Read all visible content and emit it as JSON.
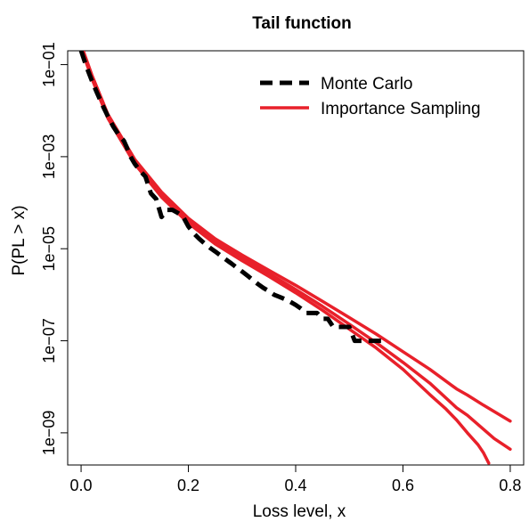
{
  "chart_data": {
    "type": "line",
    "title": "Tail function",
    "xlabel": "Loss level, x",
    "ylabel": "P(PL > x)",
    "xlim": [
      -0.025,
      0.825
    ],
    "ylim": [
      2e-10,
      0.2
    ],
    "y_scale": "log",
    "grid": false,
    "legend_position": "top-right",
    "x_ticks": [
      {
        "value": 0.0,
        "label": "0.0"
      },
      {
        "value": 0.2,
        "label": "0.2"
      },
      {
        "value": 0.4,
        "label": "0.4"
      },
      {
        "value": 0.6,
        "label": "0.6"
      },
      {
        "value": 0.8,
        "label": "0.8"
      }
    ],
    "y_ticks": [
      {
        "value": 0.1,
        "label": "1e−01"
      },
      {
        "value": 0.001,
        "label": "1e−03"
      },
      {
        "value": 1e-05,
        "label": "1e−05"
      },
      {
        "value": 1e-07,
        "label": "1e−07"
      },
      {
        "value": 1e-09,
        "label": "1e−09"
      }
    ],
    "series": [
      {
        "name": "Monte Carlo",
        "color": "#000000",
        "style": "dashed",
        "x": [
          0.0,
          0.01,
          0.02,
          0.03,
          0.04,
          0.05,
          0.06,
          0.07,
          0.08,
          0.085,
          0.09,
          0.1,
          0.11,
          0.12,
          0.13,
          0.14,
          0.15,
          0.16,
          0.17,
          0.18,
          0.19,
          0.2,
          0.21,
          0.22,
          0.23,
          0.24,
          0.25,
          0.26,
          0.27,
          0.28,
          0.29,
          0.3,
          0.31,
          0.32,
          0.33,
          0.34,
          0.35,
          0.36,
          0.37,
          0.38,
          0.39,
          0.4,
          0.41,
          0.42,
          0.43,
          0.44,
          0.45,
          0.46,
          0.47,
          0.48,
          0.49,
          0.5,
          0.51,
          0.52,
          0.53,
          0.54,
          0.55,
          0.56,
          0.57
        ],
        "y": [
          0.2,
          0.09,
          0.045,
          0.024,
          0.013,
          0.0075,
          0.0045,
          0.003,
          0.0022,
          0.0016,
          0.0011,
          0.0007,
          0.00049,
          0.00037,
          0.00016,
          0.00012,
          4.9e-05,
          7e-05,
          7e-05,
          6e-05,
          5e-05,
          3.05e-05,
          2.15e-05,
          1.65e-05,
          1.3e-05,
          1.05e-05,
          8.7e-06,
          7.1e-06,
          5.8e-06,
          4.8e-06,
          3.9e-06,
          3.2e-06,
          2.6e-06,
          2.1e-06,
          1.7e-06,
          1.4e-06,
          1.2e-06,
          1e-06,
          9e-07,
          8e-07,
          7e-07,
          6e-07,
          5e-07,
          4e-07,
          4e-07,
          4e-07,
          3e-07,
          3e-07,
          2e-07,
          2e-07,
          2e-07,
          2e-07,
          1e-07,
          1e-07,
          1e-07,
          1e-07,
          1e-07,
          1e-07,
          1e-07
        ]
      },
      {
        "name": "Importance Sampling",
        "color": "#e8202a",
        "style": "solid",
        "x": [
          0.0,
          0.02,
          0.05,
          0.1,
          0.15,
          0.2,
          0.25,
          0.3,
          0.35,
          0.4,
          0.45,
          0.5,
          0.55,
          0.6,
          0.65,
          0.7,
          0.72,
          0.75,
          0.77,
          0.8
        ],
        "y": [
          0.25,
          0.055,
          0.0075,
          0.00078,
          0.00015,
          4.1e-05,
          1.45e-05,
          6.3e-06,
          2.9e-06,
          1.3e-06,
          5.6e-07,
          2.3e-07,
          9.1e-08,
          3.4e-08,
          1.2e-08,
          3.5e-09,
          2.4e-09,
          1.2e-09,
          7.5e-10,
          4.4e-10
        ]
      },
      {
        "name": "",
        "color": "#e8202a",
        "style": "solid",
        "x": [
          0.0,
          0.02,
          0.05,
          0.1,
          0.15,
          0.2,
          0.25,
          0.3,
          0.35,
          0.4,
          0.45,
          0.5,
          0.55,
          0.6,
          0.65,
          0.7,
          0.72,
          0.75,
          0.77,
          0.8
        ],
        "y": [
          0.27,
          0.06,
          0.0083,
          0.00088,
          0.00017,
          4.6e-05,
          1.65e-05,
          7.3e-06,
          3.4e-06,
          1.6e-06,
          7.2e-07,
          3.2e-07,
          1.4e-07,
          5.8e-08,
          2.4e-08,
          9e-09,
          6.6e-09,
          4e-09,
          2.9e-09,
          1.8e-09
        ]
      },
      {
        "name": "",
        "color": "#e8202a",
        "style": "solid",
        "x": [
          0.0,
          0.02,
          0.05,
          0.1,
          0.15,
          0.2,
          0.25,
          0.3,
          0.35,
          0.4,
          0.45,
          0.5,
          0.55,
          0.6,
          0.65,
          0.68,
          0.7,
          0.72,
          0.74,
          0.75,
          0.76
        ],
        "y": [
          0.23,
          0.05,
          0.0068,
          0.0007,
          0.000133,
          3.6e-05,
          1.27e-05,
          5.5e-06,
          2.5e-06,
          1.1e-06,
          4.6e-07,
          1.8e-07,
          7e-08,
          2.4e-08,
          6.8e-09,
          3.3e-09,
          1.9e-09,
          1e-09,
          5.5e-10,
          3.7e-10,
          2.2e-10
        ]
      }
    ]
  }
}
